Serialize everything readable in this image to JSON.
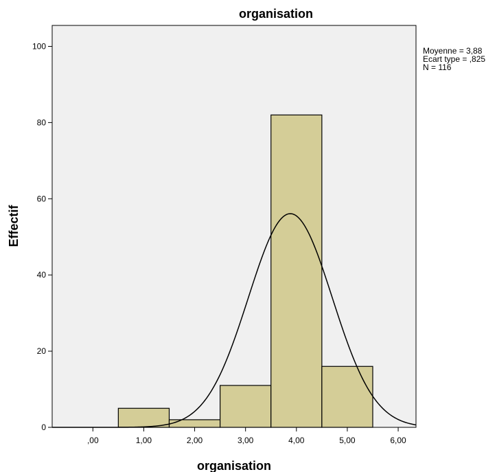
{
  "chart_data": {
    "type": "bar",
    "title": "organisation",
    "xlabel": "organisation",
    "ylabel": "Effectif",
    "x_ticks": [
      0,
      1,
      2,
      3,
      4,
      5,
      6
    ],
    "x_tick_labels": [
      ",00",
      "1,00",
      "2,00",
      "3,00",
      "4,00",
      "5,00",
      "6,00"
    ],
    "y_ticks": [
      0,
      20,
      40,
      60,
      80,
      100
    ],
    "y_tick_labels": [
      "0",
      "20",
      "40",
      "60",
      "80",
      "100"
    ],
    "xlim": [
      -0.8,
      6.35
    ],
    "ylim": [
      0,
      105.5
    ],
    "bin_width": 1,
    "bins": [
      {
        "center": 1,
        "value": 5
      },
      {
        "center": 2,
        "value": 2
      },
      {
        "center": 3,
        "value": 11
      },
      {
        "center": 4,
        "value": 82
      },
      {
        "center": 5,
        "value": 16
      }
    ],
    "normal_curve": {
      "mean": 3.88,
      "sd": 0.825,
      "n": 116
    },
    "stats": [
      "Moyenne = 3,88",
      "Ecart type = ,825",
      "N = 116"
    ],
    "colors": {
      "bar_fill": "#d4cd97",
      "bar_stroke": "#000000",
      "plot_bg": "#f0f0f0",
      "curve": "#000000"
    },
    "grid": false
  }
}
